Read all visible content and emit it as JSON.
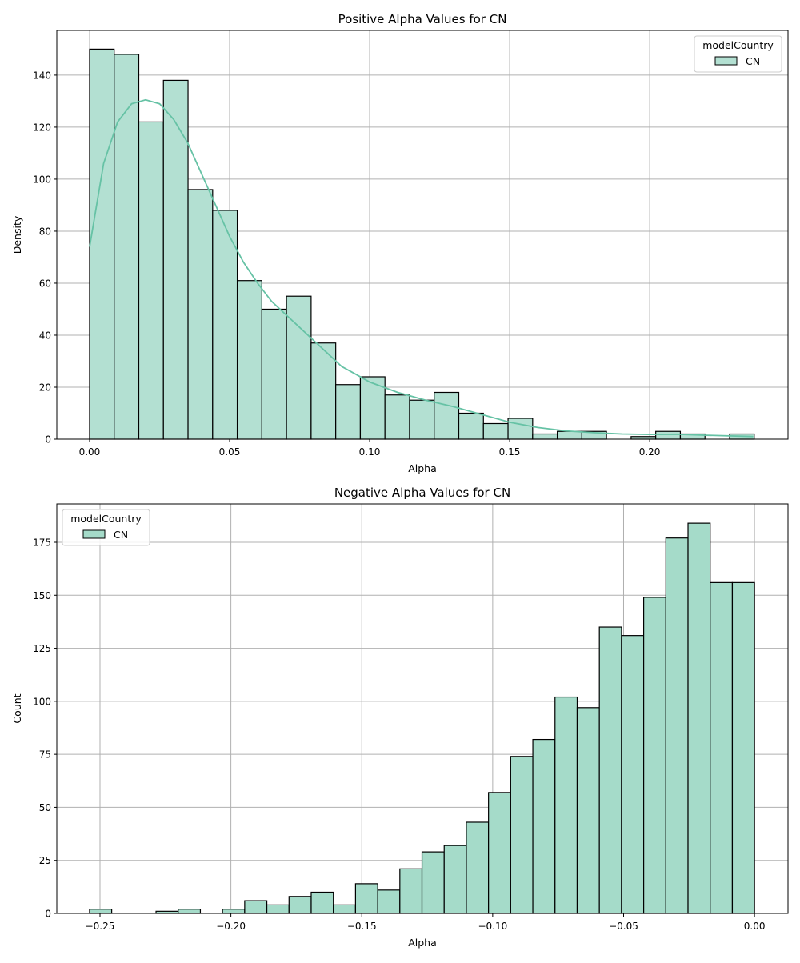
{
  "chart_data": [
    {
      "type": "bar",
      "subtype": "histogram_with_kde",
      "title": "Positive Alpha Values for CN",
      "xlabel": "Alpha",
      "ylabel": "Density",
      "xlim": [
        -0.0117,
        0.2494
      ],
      "ylim": [
        0,
        157.2
      ],
      "xticks": [
        0.0,
        0.05,
        0.1,
        0.15,
        0.2
      ],
      "xtick_labels": [
        "0.00",
        "0.05",
        "0.10",
        "0.15",
        "0.20"
      ],
      "yticks": [
        0,
        20,
        40,
        60,
        80,
        100,
        120,
        140
      ],
      "ytick_labels": [
        "0",
        "20",
        "40",
        "60",
        "80",
        "100",
        "120",
        "140"
      ],
      "grid": true,
      "bin_start": 0.0,
      "bin_width": 0.00879,
      "values": [
        150,
        148,
        122,
        138,
        96,
        88,
        61,
        50,
        55,
        37,
        21,
        24,
        17,
        15,
        18,
        10,
        6,
        8,
        2,
        3,
        3,
        0,
        1,
        3,
        2,
        0,
        2
      ],
      "kde": {
        "x": [
          0,
          0.005,
          0.01,
          0.015,
          0.02,
          0.025,
          0.03,
          0.035,
          0.04,
          0.045,
          0.05,
          0.055,
          0.06,
          0.065,
          0.07,
          0.075,
          0.08,
          0.085,
          0.09,
          0.095,
          0.1,
          0.11,
          0.12,
          0.13,
          0.14,
          0.15,
          0.16,
          0.17,
          0.18,
          0.19,
          0.2,
          0.21,
          0.22,
          0.237
        ],
        "y": [
          74,
          106,
          122,
          129,
          130.5,
          129,
          123,
          114,
          102,
          90,
          78,
          68,
          60,
          53,
          48,
          43,
          38,
          33,
          28,
          25,
          22,
          18,
          15,
          12.5,
          9.5,
          6.5,
          4.5,
          3.2,
          2.5,
          2,
          1.8,
          1.9,
          1.5,
          1
        ]
      },
      "legend": {
        "title": "modelCountry",
        "entries": [
          "CN"
        ],
        "position": "top-right"
      },
      "colors": {
        "bar": "#b3e0d2",
        "edge": "#000000",
        "kde": "#66c2a5"
      }
    },
    {
      "type": "bar",
      "subtype": "histogram",
      "title": "Negative Alpha Values for CN",
      "xlabel": "Alpha",
      "ylabel": "Count",
      "xlim": [
        -0.2665,
        0.0128
      ],
      "ylim": [
        0,
        193.1
      ],
      "xticks": [
        -0.25,
        -0.2,
        -0.15,
        -0.1,
        -0.05,
        0.0
      ],
      "xtick_labels": [
        "−0.25",
        "−0.20",
        "−0.15",
        "−0.10",
        "−0.05",
        "0.00"
      ],
      "yticks": [
        0,
        25,
        50,
        75,
        100,
        125,
        150,
        175
      ],
      "ytick_labels": [
        "0",
        "25",
        "50",
        "75",
        "100",
        "125",
        "150",
        "175"
      ],
      "grid": true,
      "bin_start": -0.254,
      "bin_width": 0.008467,
      "values": [
        2,
        0,
        0,
        1,
        2,
        0,
        2,
        6,
        4,
        8,
        10,
        4,
        14,
        11,
        21,
        29,
        32,
        43,
        57,
        74,
        82,
        102,
        97,
        135,
        131,
        149,
        177,
        184,
        156,
        156
      ],
      "legend": {
        "title": "modelCountry",
        "entries": [
          "CN"
        ],
        "position": "top-left"
      },
      "colors": {
        "bar": "#a5dbc9",
        "edge": "#000000"
      }
    }
  ]
}
